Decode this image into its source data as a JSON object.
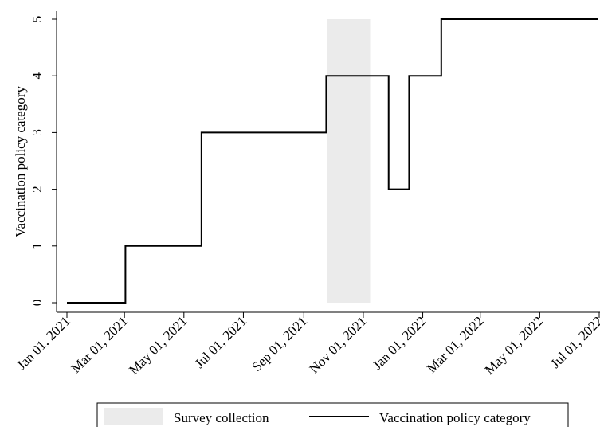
{
  "chart_data": {
    "type": "line",
    "title": "",
    "xlabel": "",
    "ylabel": "Vaccination policy category",
    "ylim": [
      0,
      5
    ],
    "xlim": [
      "2021-01-01",
      "2022-07-01"
    ],
    "yticks": [
      0,
      1,
      2,
      3,
      4,
      5
    ],
    "x_ticks": [
      {
        "date": "2021-01-01",
        "label": "Jan 01, 2021"
      },
      {
        "date": "2021-03-01",
        "label": "Mar 01, 2021"
      },
      {
        "date": "2021-05-01",
        "label": "May 01, 2021"
      },
      {
        "date": "2021-07-01",
        "label": "Jul 01, 2021"
      },
      {
        "date": "2021-09-01",
        "label": "Sep 01, 2021"
      },
      {
        "date": "2021-11-01",
        "label": "Nov 01, 2021"
      },
      {
        "date": "2022-01-01",
        "label": "Jan 01, 2022"
      },
      {
        "date": "2022-03-01",
        "label": "Mar 01, 2022"
      },
      {
        "date": "2022-05-01",
        "label": "May 01, 2022"
      },
      {
        "date": "2022-07-01",
        "label": "Jul 01, 2022"
      }
    ],
    "series": [
      {
        "name": "Vaccination policy category",
        "style": "step",
        "color": "#000000",
        "points": [
          {
            "x": "2021-01-01",
            "y": 0
          },
          {
            "x": "2021-03-02",
            "y": 1
          },
          {
            "x": "2021-05-19",
            "y": 3
          },
          {
            "x": "2021-09-24",
            "y": 4
          },
          {
            "x": "2021-11-27",
            "y": 2
          },
          {
            "x": "2021-12-18",
            "y": 4
          },
          {
            "x": "2022-01-20",
            "y": 5
          },
          {
            "x": "2022-06-30",
            "y": 5
          }
        ]
      }
    ],
    "shaded_regions": [
      {
        "name": "Survey collection",
        "start": "2021-09-25",
        "end": "2021-11-08",
        "color": "#ebebeb"
      }
    ],
    "legend": {
      "position": "bottom",
      "entries": [
        "Survey collection",
        "Vaccination policy category"
      ]
    },
    "grid": false
  }
}
